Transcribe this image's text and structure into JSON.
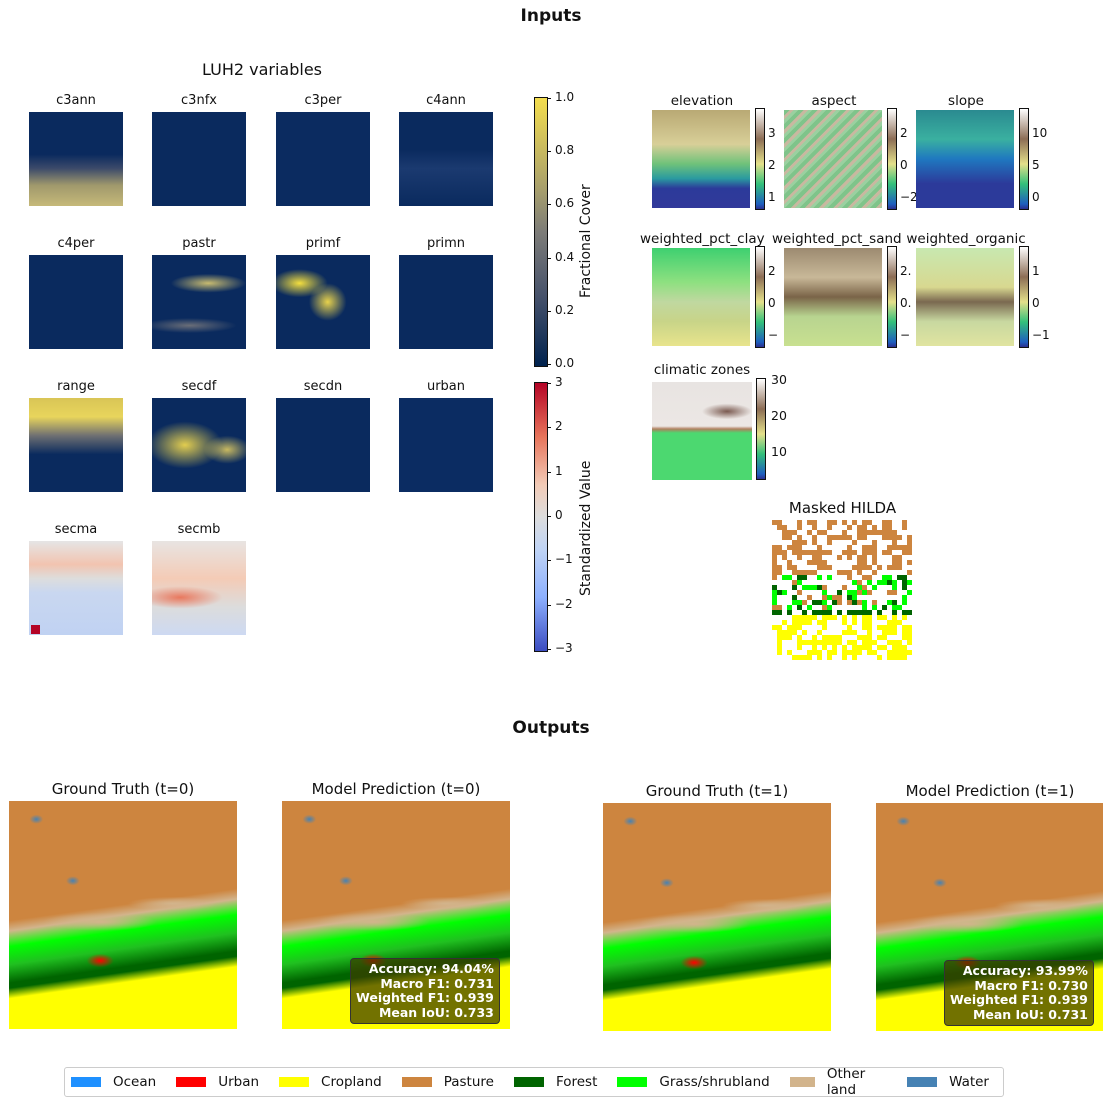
{
  "inputs_title": "Inputs",
  "outputs_title": "Outputs",
  "luh2": {
    "title": "LUH2 variables",
    "variables": [
      "c3ann",
      "c3nfx",
      "c3per",
      "c4ann",
      "c4per",
      "pastr",
      "primf",
      "primn",
      "range",
      "secdf",
      "secdn",
      "urban",
      "secma",
      "secmb"
    ]
  },
  "colorbar_fractional": {
    "label": "Fractional Cover",
    "ticks": [
      "1.0",
      "0.8",
      "0.6",
      "0.4",
      "0.2",
      "0.0"
    ],
    "colors": {
      "top": "#f3dd4e",
      "mid": "#7d7c78",
      "bottom": "#00224e"
    }
  },
  "colorbar_standardized": {
    "label": "Standardized Value",
    "ticks": [
      "3",
      "2",
      "1",
      "0",
      "−1",
      "−2",
      "−3"
    ],
    "colors": {
      "top": "#b40426",
      "mid": "#dddddd",
      "bottom": "#3b4cc0"
    }
  },
  "topo": {
    "panels": [
      {
        "name": "elevation",
        "ticks": [
          "3",
          "2",
          "1"
        ]
      },
      {
        "name": "aspect",
        "ticks": [
          "2",
          "0",
          "−2"
        ]
      },
      {
        "name": "slope",
        "ticks": [
          "10",
          "5",
          "0"
        ]
      },
      {
        "name": "weighted_pct_clay",
        "ticks": [
          "2",
          "0",
          "−"
        ]
      },
      {
        "name": "weighted_pct_sand",
        "ticks": [
          "2.",
          "0.",
          "−"
        ]
      },
      {
        "name": "weighted_organic",
        "ticks": [
          "1",
          "0",
          "−1"
        ]
      }
    ],
    "climatic": {
      "name": "climatic zones",
      "ticks": [
        "30",
        "20",
        "10"
      ]
    }
  },
  "masked_hilda_title": "Masked HILDA",
  "outputs": [
    {
      "title": "Ground Truth (t=0)"
    },
    {
      "title": "Model Prediction (t=0)",
      "metrics": [
        "Accuracy: 94.04%",
        "Macro F1: 0.731",
        "Weighted F1: 0.939",
        "Mean IoU: 0.733"
      ]
    },
    {
      "title": "Ground Truth (t=1)"
    },
    {
      "title": "Model Prediction (t=1)",
      "metrics": [
        "Accuracy: 93.99%",
        "Macro F1: 0.730",
        "Weighted F1: 0.939",
        "Mean IoU: 0.731"
      ]
    }
  ],
  "legend": [
    {
      "label": "Ocean",
      "color": "#1e90ff"
    },
    {
      "label": "Urban",
      "color": "#ff0000"
    },
    {
      "label": "Cropland",
      "color": "#ffff00"
    },
    {
      "label": "Pasture",
      "color": "#cd853f"
    },
    {
      "label": "Forest",
      "color": "#006400"
    },
    {
      "label": "Grass/shrubland",
      "color": "#00ff00"
    },
    {
      "label": "Other land",
      "color": "#d2b48c"
    },
    {
      "label": "Water",
      "color": "#4682b4"
    }
  ]
}
